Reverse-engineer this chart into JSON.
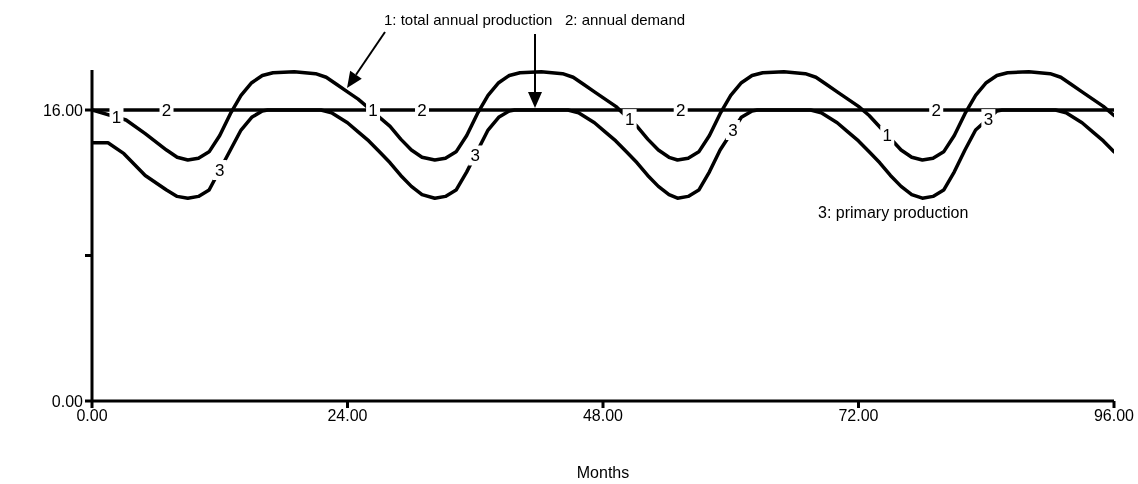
{
  "chart_data": {
    "type": "line",
    "xlabel": "Months",
    "xlim": [
      0,
      96
    ],
    "xticks": [
      {
        "value": 0,
        "label": "0.00"
      },
      {
        "value": 24,
        "label": "24.00"
      },
      {
        "value": 48,
        "label": "48.00"
      },
      {
        "value": 72,
        "label": "72.00"
      },
      {
        "value": 96,
        "label": "96.00"
      }
    ],
    "ylim": [
      0,
      18.2
    ],
    "yticks": [
      {
        "value": 0,
        "label": "0.00"
      },
      {
        "value": 8,
        "label": null
      },
      {
        "value": 16,
        "label": "16.00"
      }
    ],
    "grid": false,
    "legend": false,
    "marker": "none",
    "line_style": "solid",
    "series": [
      {
        "color": "#000000",
        "x": [
          0,
          3.2,
          5,
          7,
          8,
          9,
          10,
          11,
          12,
          13,
          14,
          15,
          16,
          17,
          19,
          21,
          22,
          23,
          24,
          25,
          28,
          29,
          30,
          31,
          32.2,
          33.2,
          34.2,
          35.2,
          36.2,
          37.2,
          38.2,
          39.2,
          40.2,
          42.2,
          44.2,
          45.2,
          46.2,
          47.2,
          48.2,
          49.2,
          51.2,
          52.2,
          53.2,
          54.2,
          55,
          56,
          57,
          58,
          59,
          60,
          61,
          62,
          63,
          65,
          67,
          68,
          69,
          70,
          71,
          72,
          73,
          76,
          77,
          78,
          79,
          80,
          81,
          82,
          83,
          84,
          85,
          86,
          88,
          90,
          91,
          92,
          93,
          94,
          95,
          96
        ],
        "values": [
          16,
          15.45,
          14.7,
          13.8,
          13.4,
          13.25,
          13.35,
          13.7,
          14.6,
          15.8,
          16.8,
          17.5,
          17.9,
          18.05,
          18.1,
          18,
          17.8,
          17.4,
          17,
          16.6,
          15.1,
          14.4,
          13.8,
          13.4,
          13.25,
          13.35,
          13.7,
          14.6,
          15.8,
          16.8,
          17.5,
          17.9,
          18.05,
          18.1,
          18,
          17.8,
          17.4,
          17,
          16.6,
          16.2,
          15.1,
          14.4,
          13.8,
          13.4,
          13.25,
          13.35,
          13.7,
          14.6,
          15.8,
          16.8,
          17.5,
          17.9,
          18.05,
          18.1,
          18,
          17.8,
          17.4,
          17,
          16.6,
          16.2,
          15.7,
          13.8,
          13.4,
          13.25,
          13.35,
          13.7,
          14.6,
          15.8,
          16.8,
          17.5,
          17.9,
          18.05,
          18.1,
          18,
          17.8,
          17.4,
          17,
          16.6,
          16.2,
          15.7
        ]
      },
      {
        "color": "#000000",
        "x": [
          0,
          96
        ],
        "values": [
          16,
          16
        ]
      },
      {
        "color": "#000000",
        "x": [
          0,
          1.5,
          3,
          5,
          7,
          8,
          9,
          10,
          11,
          13,
          14,
          15,
          16,
          16.5,
          21.5,
          22.5,
          24,
          25,
          26,
          27,
          28,
          29,
          30,
          31,
          32.2,
          33.2,
          34.2,
          35.2,
          37.2,
          38.2,
          39.2,
          39.7,
          44.7,
          45.7,
          47.2,
          48.2,
          49.2,
          50.2,
          51.2,
          52.2,
          53.2,
          54.2,
          55,
          56,
          57,
          58,
          59,
          61,
          62,
          62.5,
          67.5,
          68.5,
          70,
          71,
          72,
          73,
          74,
          75,
          76,
          77,
          78,
          79,
          80,
          81,
          82,
          83,
          85,
          85.5,
          90.5,
          91.5,
          93,
          94,
          95,
          96
        ],
        "values": [
          14.2,
          14.2,
          13.6,
          12.4,
          11.6,
          11.25,
          11.15,
          11.25,
          11.6,
          13.8,
          14.9,
          15.6,
          15.95,
          16,
          16,
          15.85,
          15.3,
          14.8,
          14.3,
          13.7,
          13.1,
          12.4,
          11.8,
          11.35,
          11.15,
          11.25,
          11.6,
          12.6,
          14.9,
          15.6,
          15.95,
          16,
          16,
          15.85,
          15.3,
          14.8,
          14.3,
          13.7,
          13.1,
          12.4,
          11.8,
          11.35,
          11.15,
          11.25,
          11.6,
          12.6,
          13.8,
          15.6,
          15.95,
          16,
          16,
          15.85,
          15.3,
          14.8,
          14.3,
          13.7,
          13.1,
          12.4,
          11.8,
          11.35,
          11.15,
          11.25,
          11.6,
          12.6,
          13.8,
          14.9,
          15.95,
          16,
          16,
          15.85,
          15.3,
          14.8,
          14.3,
          13.7
        ]
      }
    ],
    "annotations": [
      "1: total annual production",
      "2: annual demand",
      "3: primary production",
      {
        "text": "1",
        "x": 2.3,
        "y": 15.6
      },
      {
        "text": "1",
        "x": 26.4,
        "y": 16
      },
      {
        "text": "1",
        "x": 50.5,
        "y": 15.5
      },
      {
        "text": "1",
        "x": 74.7,
        "y": 14.6
      },
      {
        "text": "2",
        "x": 7,
        "y": 16
      },
      {
        "text": "2",
        "x": 31,
        "y": 16
      },
      {
        "text": "2",
        "x": 55.3,
        "y": 16
      },
      {
        "text": "2",
        "x": 79.3,
        "y": 16
      },
      {
        "text": "3",
        "x": 12,
        "y": 12.7
      },
      {
        "text": "3",
        "x": 36,
        "y": 13.5
      },
      {
        "text": "3",
        "x": 60.2,
        "y": 14.9
      },
      {
        "text": "3",
        "x": 84.2,
        "y": 15.5
      }
    ]
  }
}
